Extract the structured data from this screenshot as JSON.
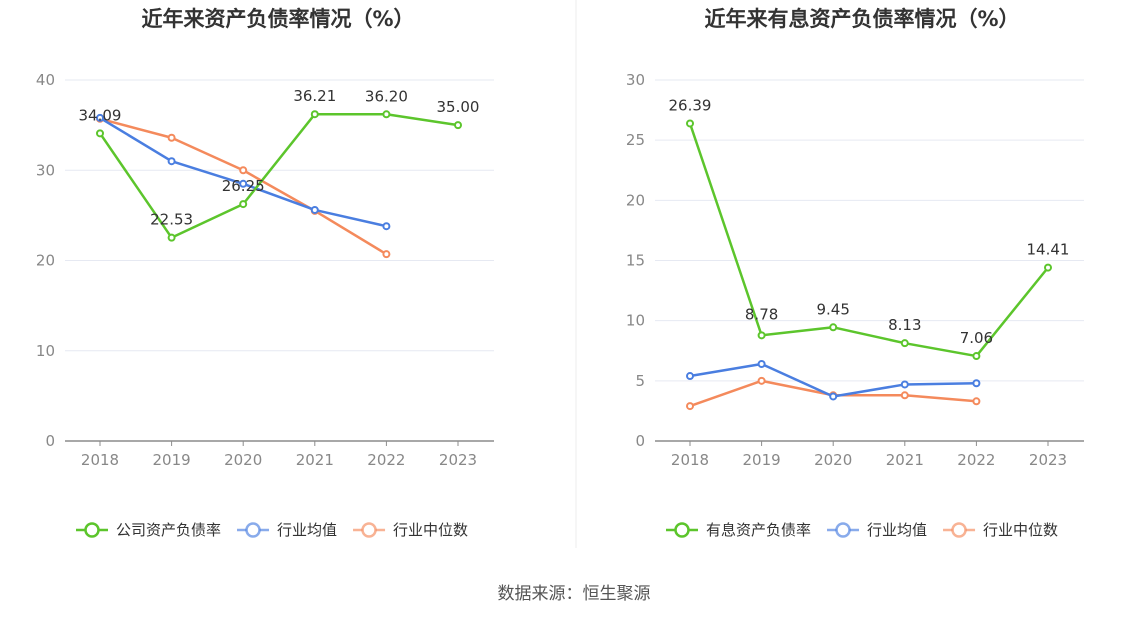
{
  "source_label": "数据来源：恒生聚源",
  "chart_data": [
    {
      "type": "line",
      "title": "近年来资产负债率情况（%）",
      "categories": [
        "2018",
        "2019",
        "2020",
        "2021",
        "2022",
        "2023"
      ],
      "ylim": [
        0,
        40
      ],
      "yticks": [
        0,
        10,
        20,
        30,
        40
      ],
      "ytick_labels": [
        "0",
        "10",
        "20",
        "30",
        "40"
      ],
      "grid": true,
      "legend_position": "bottom",
      "series": [
        {
          "name": "公司资产负债率",
          "color": "#5cc52c",
          "values": [
            34.09,
            22.53,
            26.25,
            36.21,
            36.2,
            35.0
          ],
          "labels": [
            "34.09",
            "22.53",
            "26.25",
            "36.21",
            "36.20",
            "35.00"
          ]
        },
        {
          "name": "行业均值",
          "color": "#4a7ee0",
          "values": [
            35.8,
            31.0,
            28.5,
            25.6,
            23.8,
            null
          ]
        },
        {
          "name": "行业中位数",
          "color": "#f48a5c",
          "values": [
            35.7,
            33.6,
            30.0,
            25.5,
            20.7,
            null
          ]
        }
      ]
    },
    {
      "type": "line",
      "title": "近年来有息资产负债率情况（%）",
      "categories": [
        "2018",
        "2019",
        "2020",
        "2021",
        "2022",
        "2023"
      ],
      "ylim": [
        0,
        30
      ],
      "yticks": [
        0,
        5,
        10,
        15,
        20,
        25,
        30
      ],
      "ytick_labels": [
        "0",
        "5",
        "10",
        "15",
        "20",
        "25",
        "30"
      ],
      "grid": true,
      "legend_position": "bottom",
      "series": [
        {
          "name": "有息资产负债率",
          "color": "#5cc52c",
          "values": [
            26.39,
            8.78,
            9.45,
            8.13,
            7.06,
            14.41
          ],
          "labels": [
            "26.39",
            "8.78",
            "9.45",
            "8.13",
            "7.06",
            "14.41"
          ]
        },
        {
          "name": "行业均值",
          "color": "#4a7ee0",
          "values": [
            5.4,
            6.4,
            3.7,
            4.7,
            4.8,
            null
          ]
        },
        {
          "name": "行业中位数",
          "color": "#f48a5c",
          "values": [
            2.9,
            5.0,
            3.8,
            3.8,
            3.3,
            null
          ]
        }
      ]
    }
  ]
}
